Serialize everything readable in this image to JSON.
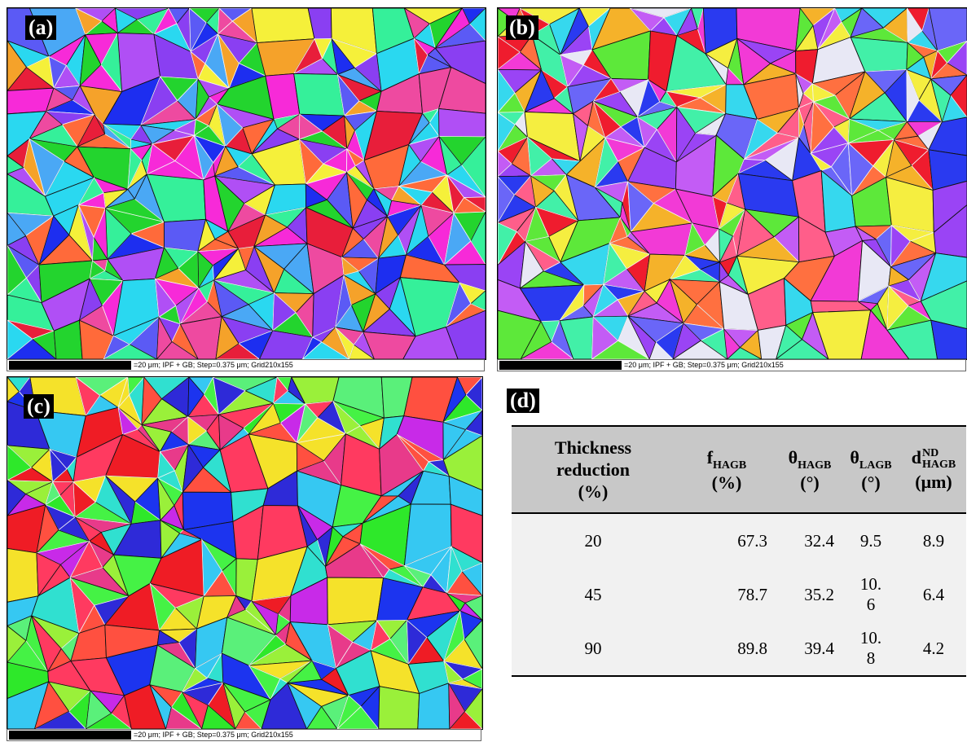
{
  "panels": [
    {
      "label": "(a)",
      "scale_text": "=20 μm; IPF + GB; Step=0.375 μm; Grid210x155",
      "palette": [
        "#e81e3a",
        "#1d2ef0",
        "#23d42e",
        "#f72ad8",
        "#8a3ff2",
        "#2ad8f0",
        "#f5a22a",
        "#ee4aa0",
        "#5b5af5",
        "#35f09a",
        "#ff6a3a",
        "#b04ff5",
        "#4aa8f5",
        "#f5f03a"
      ]
    },
    {
      "label": "(b)",
      "scale_text": "=20 μm; IPF + GB; Step=0.375 μm; Grid210x155",
      "palette": [
        "#ef1c2e",
        "#2a3af0",
        "#5de83a",
        "#f23ad6",
        "#9a44f5",
        "#36d8ee",
        "#f5b22a",
        "#ff5e8a",
        "#6a66f8",
        "#42f0a8",
        "#ff7040",
        "#c35cf5",
        "#e8e8f5",
        "#f5ee40"
      ]
    },
    {
      "label": "(c)",
      "scale_text": "=20 μm; IPF + GB; Step=0.375 μm; Grid210x155",
      "palette": [
        "#ef1c25",
        "#1c34ef",
        "#2ee82a",
        "#45f245",
        "#e83a8a",
        "#36c8f2",
        "#9af03a",
        "#ff3a60",
        "#2e2ad8",
        "#5af07a",
        "#c82ae8",
        "#f5e22a",
        "#30e0d0",
        "#ff5040"
      ]
    }
  ],
  "table": {
    "label": "(d)",
    "headers": {
      "h1": [
        "Thickness",
        "reduction",
        "(%)"
      ],
      "h2": {
        "main": "f",
        "sub": "HAGB",
        "unit": "(%)"
      },
      "h3": {
        "main": "θ",
        "sub": "HAGB",
        "unit": "(°)"
      },
      "h4": {
        "main": "θ",
        "sub": "LAGB",
        "unit": "(°)"
      },
      "h5": {
        "main": "d",
        "sup": "ND",
        "sub": "HAGB",
        "unit": "(μm)"
      }
    },
    "rows": [
      {
        "reduction": "20",
        "f": "67.3",
        "theta_h": "32.4",
        "theta_l": [
          "9.5"
        ],
        "d": "8.9"
      },
      {
        "reduction": "45",
        "f": "78.7",
        "theta_h": "35.2",
        "theta_l": [
          "10.",
          "6"
        ],
        "d": "6.4"
      },
      {
        "reduction": "90",
        "f": "89.8",
        "theta_h": "39.4",
        "theta_l": [
          "10.",
          "8"
        ],
        "d": "4.2"
      }
    ]
  }
}
